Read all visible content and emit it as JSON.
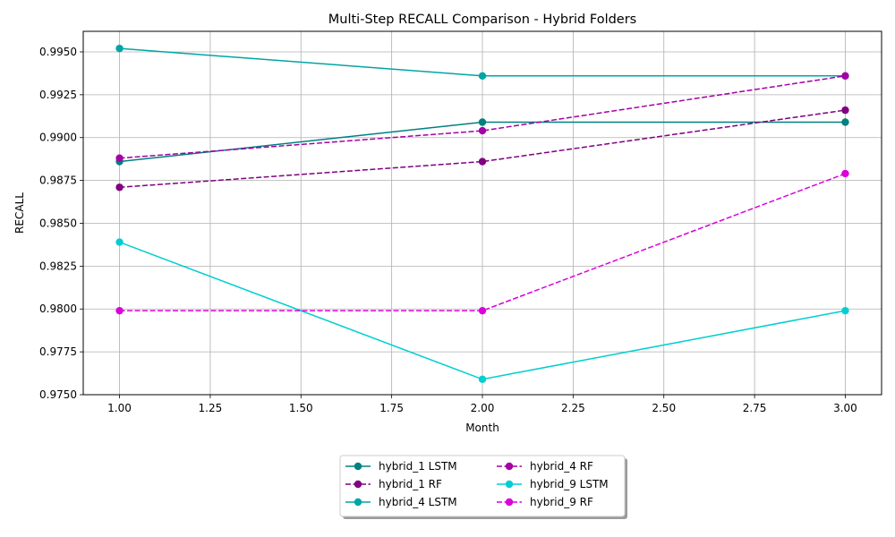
{
  "chart_data": {
    "type": "line",
    "title": "Multi-Step RECALL Comparison - Hybrid Folders",
    "xlabel": "Month",
    "ylabel": "RECALL",
    "xlim": [
      0.9,
      3.1
    ],
    "ylim": [
      0.975,
      0.9962
    ],
    "xticks": [
      "1.00",
      "1.25",
      "1.50",
      "1.75",
      "2.00",
      "2.25",
      "2.50",
      "2.75",
      "3.00"
    ],
    "yticks": [
      "0.9750",
      "0.9775",
      "0.9800",
      "0.9825",
      "0.9850",
      "0.9875",
      "0.9900",
      "0.9925",
      "0.9950"
    ],
    "grid": true,
    "legend_position": "below-center",
    "legend_columns": 2,
    "x": [
      1,
      2,
      3
    ],
    "series": [
      {
        "name": "hybrid_1 LSTM",
        "values": [
          0.9886,
          0.9909,
          0.9909
        ],
        "color": "#008080",
        "dashed": false
      },
      {
        "name": "hybrid_1 RF",
        "values": [
          0.9871,
          0.9886,
          0.9916
        ],
        "color": "#800080",
        "dashed": true
      },
      {
        "name": "hybrid_4 LSTM",
        "values": [
          0.9952,
          0.9936,
          0.9936
        ],
        "color": "#00A5A5",
        "dashed": false
      },
      {
        "name": "hybrid_4 RF",
        "values": [
          0.9888,
          0.9904,
          0.9936
        ],
        "color": "#A500A5",
        "dashed": true
      },
      {
        "name": "hybrid_9 LSTM",
        "values": [
          0.9839,
          0.9759,
          0.9799
        ],
        "color": "#00CED1",
        "dashed": false
      },
      {
        "name": "hybrid_9 RF",
        "values": [
          0.9799,
          0.9799,
          0.9879
        ],
        "color": "#DA00DA",
        "dashed": true
      }
    ]
  }
}
